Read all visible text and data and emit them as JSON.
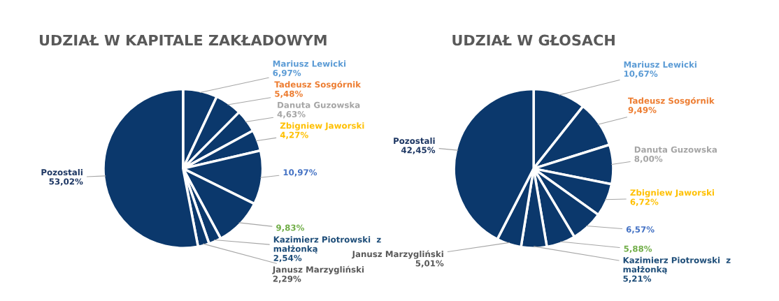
{
  "chart_data": [
    {
      "type": "pie",
      "title": "UDZIAŁ W KAPITALE ZAKŁADOWYM",
      "legend": false,
      "categories": [
        "Mariusz Lewicki",
        "Tadeusz Sosgórnik",
        "Danuta Guzowska",
        "Zbigniew Jaworski",
        null,
        null,
        "Kazimierz Piotrowski  z małżonką",
        "Janusz Marzygliński",
        "Pozostali"
      ],
      "values": [
        6.97,
        5.48,
        4.63,
        4.27,
        10.97,
        9.83,
        2.54,
        2.29,
        53.02
      ],
      "value_labels": [
        "6,97%",
        "5,48%",
        "4,63%",
        "4,27%",
        "10,97%",
        "9,83%",
        "2,54%",
        "2,29%",
        "53,02%"
      ],
      "colors": [
        "#0b386c",
        "#0b386c",
        "#0b386c",
        "#0b386c",
        "#0b386c",
        "#0b386c",
        "#0b386c",
        "#0b386c",
        "#0b386c"
      ]
    },
    {
      "type": "pie",
      "title": "UDZIAŁ W GŁOSACH",
      "legend": false,
      "categories": [
        "Mariusz Lewicki",
        "Tadeusz Sosgórnik",
        "Danuta Guzowska",
        "Zbigniew Jaworski",
        null,
        null,
        "Kazimierz Piotrowski  z małżonką",
        "Janusz Marzygliński",
        "Pozostali"
      ],
      "values": [
        10.67,
        9.49,
        8.0,
        6.72,
        6.57,
        5.88,
        5.21,
        5.01,
        42.45
      ],
      "value_labels": [
        "10,67%",
        "9,49%",
        "8,00%",
        "6,72%",
        "6,57%",
        "5,88%",
        "5,21%",
        "5,01%",
        "42,45%"
      ],
      "colors": [
        "#0b386c",
        "#0b386c",
        "#0b386c",
        "#0b386c",
        "#0b386c",
        "#0b386c",
        "#0b386c",
        "#0b386c",
        "#0b386c"
      ]
    }
  ]
}
